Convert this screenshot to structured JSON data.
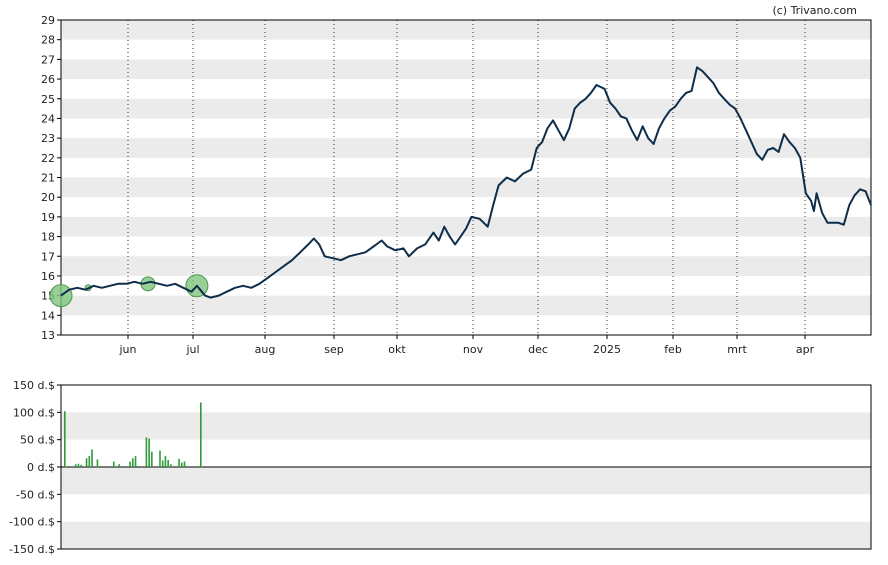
{
  "watermark": "(c) Trivano.com",
  "colors": {
    "band": "#ebebeb",
    "price_line": "#0d2d4a",
    "volume_bar": "#2e9a3a",
    "marker_fill": "#7ec47e",
    "marker_stroke": "#4c9a4c",
    "axis": "#000000",
    "month_grid": "#333333"
  },
  "chart_data": [
    {
      "type": "line",
      "title": "",
      "xlabel": "",
      "ylabel": "",
      "ylim": [
        13,
        29
      ],
      "y_ticks": [
        13,
        14,
        15,
        16,
        17,
        18,
        19,
        20,
        21,
        22,
        23,
        24,
        25,
        26,
        27,
        28,
        29
      ],
      "grid": "alternating horizontal bands, dotted vertical month lines",
      "x_tick_labels": [
        "jun",
        "jul",
        "aug",
        "sep",
        "okt",
        "nov",
        "dec",
        "2025",
        "feb",
        "mrt",
        "apr"
      ],
      "series": [
        {
          "name": "",
          "points": [
            [
              0,
              15.0
            ],
            [
              3,
              15.3
            ],
            [
              6,
              15.4
            ],
            [
              9,
              15.3
            ],
            [
              12,
              15.5
            ],
            [
              15,
              15.4
            ],
            [
              18,
              15.5
            ],
            [
              21,
              15.6
            ],
            [
              24,
              15.6
            ],
            [
              27,
              15.7
            ],
            [
              30,
              15.6
            ],
            [
              33,
              15.7
            ],
            [
              36,
              15.6
            ],
            [
              39,
              15.5
            ],
            [
              42,
              15.6
            ],
            [
              45,
              15.4
            ],
            [
              48,
              15.2
            ],
            [
              50,
              15.5
            ],
            [
              53,
              15.0
            ],
            [
              55,
              14.9
            ],
            [
              58,
              15.0
            ],
            [
              61,
              15.2
            ],
            [
              64,
              15.4
            ],
            [
              67,
              15.5
            ],
            [
              70,
              15.4
            ],
            [
              73,
              15.6
            ],
            [
              76,
              15.9
            ],
            [
              79,
              16.2
            ],
            [
              82,
              16.5
            ],
            [
              85,
              16.8
            ],
            [
              88,
              17.2
            ],
            [
              91,
              17.6
            ],
            [
              93,
              17.9
            ],
            [
              95,
              17.6
            ],
            [
              97,
              17.0
            ],
            [
              100,
              16.9
            ],
            [
              103,
              16.8
            ],
            [
              106,
              17.0
            ],
            [
              109,
              17.1
            ],
            [
              112,
              17.2
            ],
            [
              115,
              17.5
            ],
            [
              118,
              17.8
            ],
            [
              120,
              17.5
            ],
            [
              123,
              17.3
            ],
            [
              126,
              17.4
            ],
            [
              128,
              17.0
            ],
            [
              131,
              17.4
            ],
            [
              134,
              17.6
            ],
            [
              137,
              18.2
            ],
            [
              139,
              17.8
            ],
            [
              141,
              18.5
            ],
            [
              143,
              18.0
            ],
            [
              145,
              17.6
            ],
            [
              147,
              18.0
            ],
            [
              149,
              18.4
            ],
            [
              151,
              19.0
            ],
            [
              154,
              18.9
            ],
            [
              157,
              18.5
            ],
            [
              159,
              19.6
            ],
            [
              161,
              20.6
            ],
            [
              164,
              21.0
            ],
            [
              167,
              20.8
            ],
            [
              170,
              21.2
            ],
            [
              173,
              21.4
            ],
            [
              175,
              22.5
            ],
            [
              177,
              22.8
            ],
            [
              179,
              23.5
            ],
            [
              181,
              23.9
            ],
            [
              183,
              23.4
            ],
            [
              185,
              22.9
            ],
            [
              187,
              23.5
            ],
            [
              189,
              24.5
            ],
            [
              191,
              24.8
            ],
            [
              193,
              25.0
            ],
            [
              195,
              25.3
            ],
            [
              197,
              25.7
            ],
            [
              200,
              25.5
            ],
            [
              202,
              24.8
            ],
            [
              204,
              24.5
            ],
            [
              206,
              24.1
            ],
            [
              208,
              24.0
            ],
            [
              210,
              23.4
            ],
            [
              212,
              22.9
            ],
            [
              214,
              23.6
            ],
            [
              216,
              23.0
            ],
            [
              218,
              22.7
            ],
            [
              220,
              23.5
            ],
            [
              222,
              24.0
            ],
            [
              224,
              24.4
            ],
            [
              226,
              24.6
            ],
            [
              228,
              25.0
            ],
            [
              230,
              25.3
            ],
            [
              232,
              25.4
            ],
            [
              234,
              26.6
            ],
            [
              236,
              26.4
            ],
            [
              238,
              26.1
            ],
            [
              240,
              25.8
            ],
            [
              242,
              25.3
            ],
            [
              244,
              25.0
            ],
            [
              246,
              24.7
            ],
            [
              248,
              24.5
            ],
            [
              250,
              24.0
            ],
            [
              252,
              23.4
            ],
            [
              254,
              22.8
            ],
            [
              256,
              22.2
            ],
            [
              258,
              21.9
            ],
            [
              260,
              22.4
            ],
            [
              262,
              22.5
            ],
            [
              264,
              22.3
            ],
            [
              266,
              23.2
            ],
            [
              268,
              22.8
            ],
            [
              270,
              22.5
            ],
            [
              272,
              22.0
            ],
            [
              274,
              20.2
            ],
            [
              276,
              19.8
            ],
            [
              277,
              19.3
            ],
            [
              278,
              20.2
            ],
            [
              280,
              19.2
            ],
            [
              282,
              18.7
            ],
            [
              286,
              18.7
            ],
            [
              288,
              18.6
            ],
            [
              290,
              19.6
            ],
            [
              292,
              20.1
            ],
            [
              294,
              20.4
            ],
            [
              296,
              20.3
            ],
            [
              298,
              19.6
            ]
          ]
        }
      ],
      "markers": [
        {
          "x": 0,
          "y": 15.0,
          "size": "large"
        },
        {
          "x": 10,
          "y": 15.4,
          "size": "tiny"
        },
        {
          "x": 32,
          "y": 15.6,
          "size": "small"
        },
        {
          "x": 50,
          "y": 15.5,
          "size": "large"
        }
      ]
    },
    {
      "type": "bar",
      "title": "",
      "xlabel": "",
      "ylabel": "",
      "ylim": [
        -150,
        150
      ],
      "y_tick_labels": [
        "150 d.$",
        "100 d.$",
        "50 d.$",
        "0 d.$",
        "-50 d.$",
        "-100 d.$",
        "-150 d.$"
      ],
      "y_ticks": [
        150,
        100,
        50,
        0,
        -50,
        -100,
        -150
      ],
      "bars": [
        {
          "x": 0,
          "value": 102
        },
        {
          "x": 4,
          "value": 5
        },
        {
          "x": 5,
          "value": 6
        },
        {
          "x": 6,
          "value": 4
        },
        {
          "x": 8,
          "value": 16
        },
        {
          "x": 9,
          "value": 20
        },
        {
          "x": 10,
          "value": 32
        },
        {
          "x": 12,
          "value": 14
        },
        {
          "x": 18,
          "value": 10
        },
        {
          "x": 20,
          "value": 5
        },
        {
          "x": 24,
          "value": 10
        },
        {
          "x": 25,
          "value": 16
        },
        {
          "x": 26,
          "value": 20
        },
        {
          "x": 30,
          "value": 54
        },
        {
          "x": 31,
          "value": 52
        },
        {
          "x": 32,
          "value": 28
        },
        {
          "x": 35,
          "value": 30
        },
        {
          "x": 36,
          "value": 12
        },
        {
          "x": 37,
          "value": 20
        },
        {
          "x": 38,
          "value": 13
        },
        {
          "x": 39,
          "value": 5
        },
        {
          "x": 42,
          "value": 15
        },
        {
          "x": 43,
          "value": 8
        },
        {
          "x": 44,
          "value": 10
        },
        {
          "x": 50,
          "value": 118
        }
      ]
    }
  ]
}
